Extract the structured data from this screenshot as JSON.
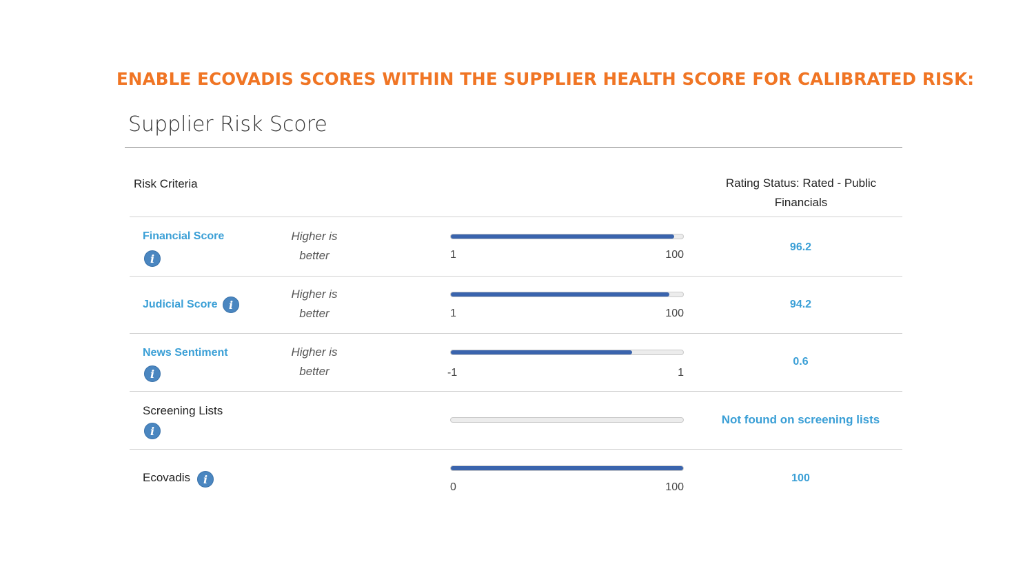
{
  "headline": "ENABLE ECOVADIS SCORES WITHIN THE SUPPLIER HEALTH SCORE FOR CALIBRATED RISK:",
  "panel_title": "Supplier Risk Score",
  "table_header": {
    "criteria": "Risk Criteria",
    "rating_status": "Rating Status: Rated - Public Financials"
  },
  "colors": {
    "headline": "#f07524",
    "link": "#3a9fd6",
    "bar_fill": "#3a64ad",
    "info_icon": "#4a86c0"
  },
  "rows": [
    {
      "name": "Financial Score",
      "link": true,
      "icon": "info-icon",
      "hint": "Higher is better",
      "min": "1",
      "max": "100",
      "fill_percent": 96,
      "value": "96.2"
    },
    {
      "name": "Judicial Score",
      "link": true,
      "icon": "info-icon",
      "hint": "Higher is better",
      "min": "1",
      "max": "100",
      "fill_percent": 94,
      "value": "94.2"
    },
    {
      "name": "News Sentiment",
      "link": true,
      "icon": "info-icon",
      "hint": "Higher is better",
      "min": "-1",
      "max": "1",
      "fill_percent": 78,
      "value": "0.6"
    },
    {
      "name": "Screening Lists",
      "link": false,
      "icon": "info-icon",
      "hint": "",
      "min": "",
      "max": "",
      "fill_percent": 0,
      "value": "Not found on screening lists"
    },
    {
      "name": "Ecovadis",
      "link": false,
      "icon": "info-icon",
      "hint": "",
      "min": "0",
      "max": "100",
      "fill_percent": 100,
      "value": "100"
    }
  ]
}
